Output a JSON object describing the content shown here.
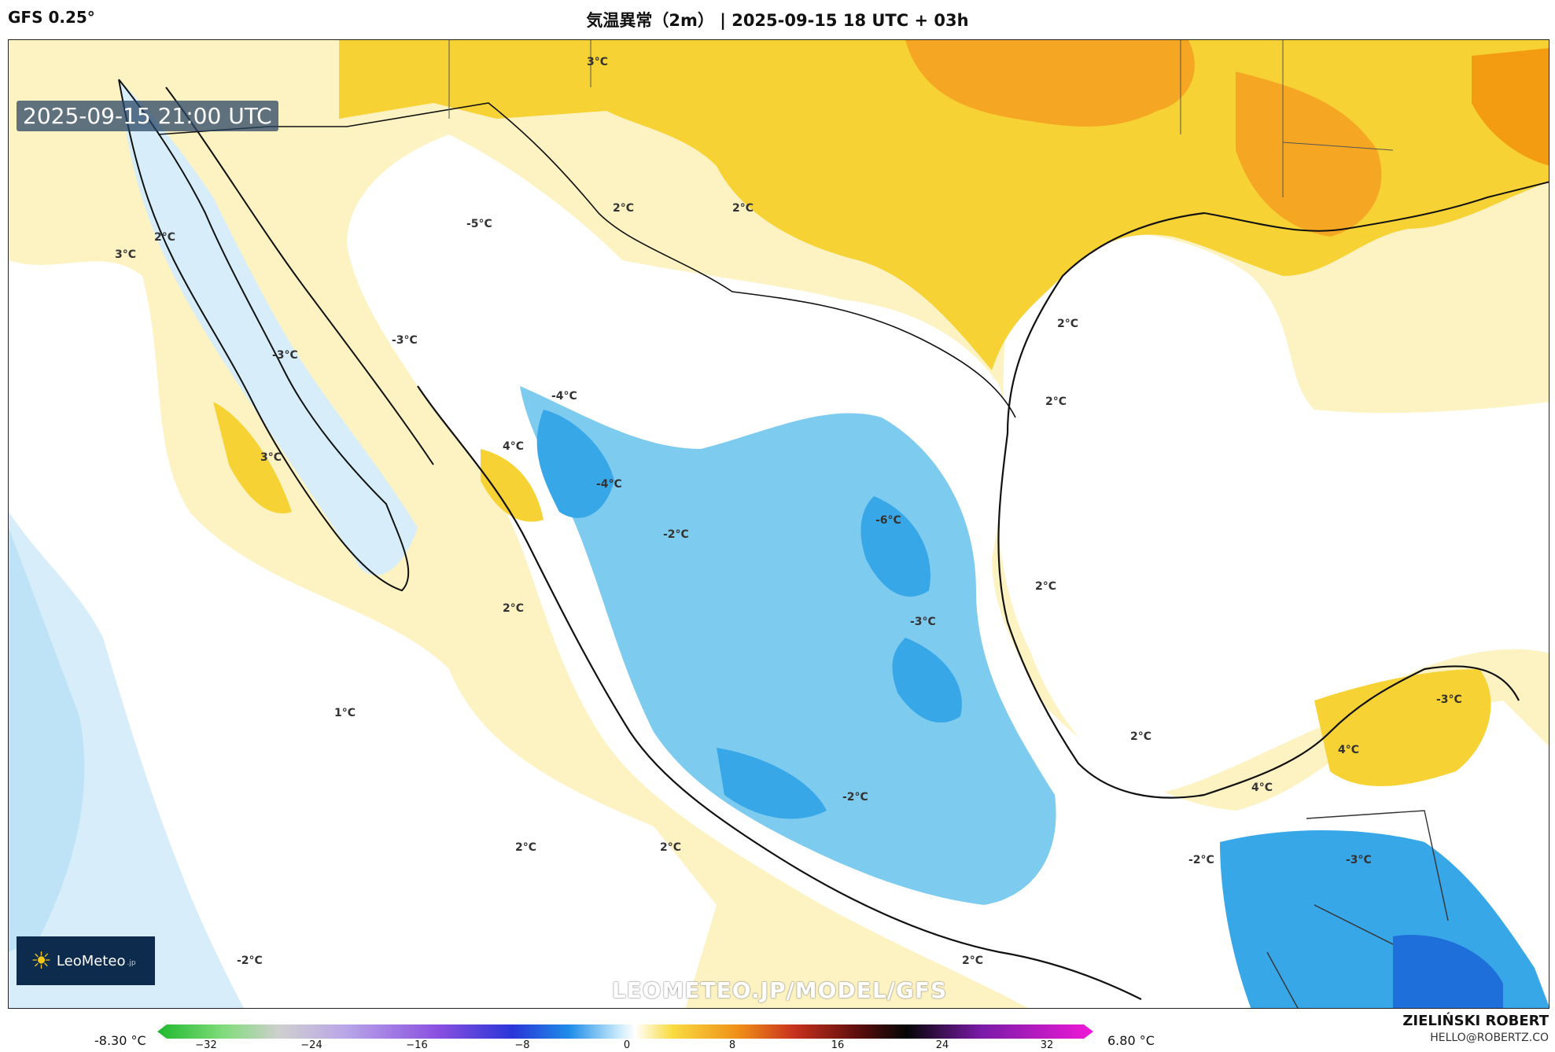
{
  "header": {
    "model": "GFS 0.25°",
    "title": "気温異常（2m） | 2025-09-15 18 UTC + 03h"
  },
  "map": {
    "valid_time": "2025-09-15 21:00 UTC",
    "watermark": "LEOMETEO.JP/MODEL/GFS",
    "logo_text": "LeoMeteo",
    "logo_suffix": ".jp",
    "logo_icon": "sun-icon",
    "colors": {
      "ocean_warm": "#fdf3c2",
      "land_warm": "#f7d234",
      "hot": "#f5a623",
      "neutral": "#ffffff",
      "cold_light": "#d7eefa",
      "cold": "#7ecbf0",
      "colder": "#38a7e8",
      "coldest": "#1e6fd9",
      "coast": "#111111"
    },
    "iso_labels": [
      {
        "text": "3°C"
      },
      {
        "text": "2°C"
      },
      {
        "text": "2°C"
      },
      {
        "text": "-5°C"
      },
      {
        "text": "2°C"
      },
      {
        "text": "-3°C"
      },
      {
        "text": "-3°C"
      },
      {
        "text": "-4°C"
      },
      {
        "text": "4°C"
      },
      {
        "text": "3°C"
      },
      {
        "text": "-4°C"
      },
      {
        "text": "-2°C"
      },
      {
        "text": "-6°C"
      },
      {
        "text": "2°C"
      },
      {
        "text": "2°C"
      },
      {
        "text": "2°C"
      },
      {
        "text": "2°C"
      },
      {
        "text": "-3°C"
      },
      {
        "text": "1°C"
      },
      {
        "text": "2°C"
      },
      {
        "text": "-3°C"
      },
      {
        "text": "4°C"
      },
      {
        "text": "4°C"
      },
      {
        "text": "-2°C"
      },
      {
        "text": "2°C"
      },
      {
        "text": "2°C"
      },
      {
        "text": "-2°C"
      },
      {
        "text": "-3°C"
      },
      {
        "text": "-2°C"
      },
      {
        "text": "2°C"
      },
      {
        "text": "3°C"
      }
    ]
  },
  "colorbar": {
    "min_label": "-8.30 °C",
    "max_label": "6.80 °C",
    "ticks": [
      "−32",
      "−24",
      "−16",
      "−8",
      "0",
      "8",
      "16",
      "24",
      "32"
    ]
  },
  "footer": {
    "author": "ZIELIŃSKI ROBERT",
    "email": "HELLO@ROBERTZ.CO"
  }
}
